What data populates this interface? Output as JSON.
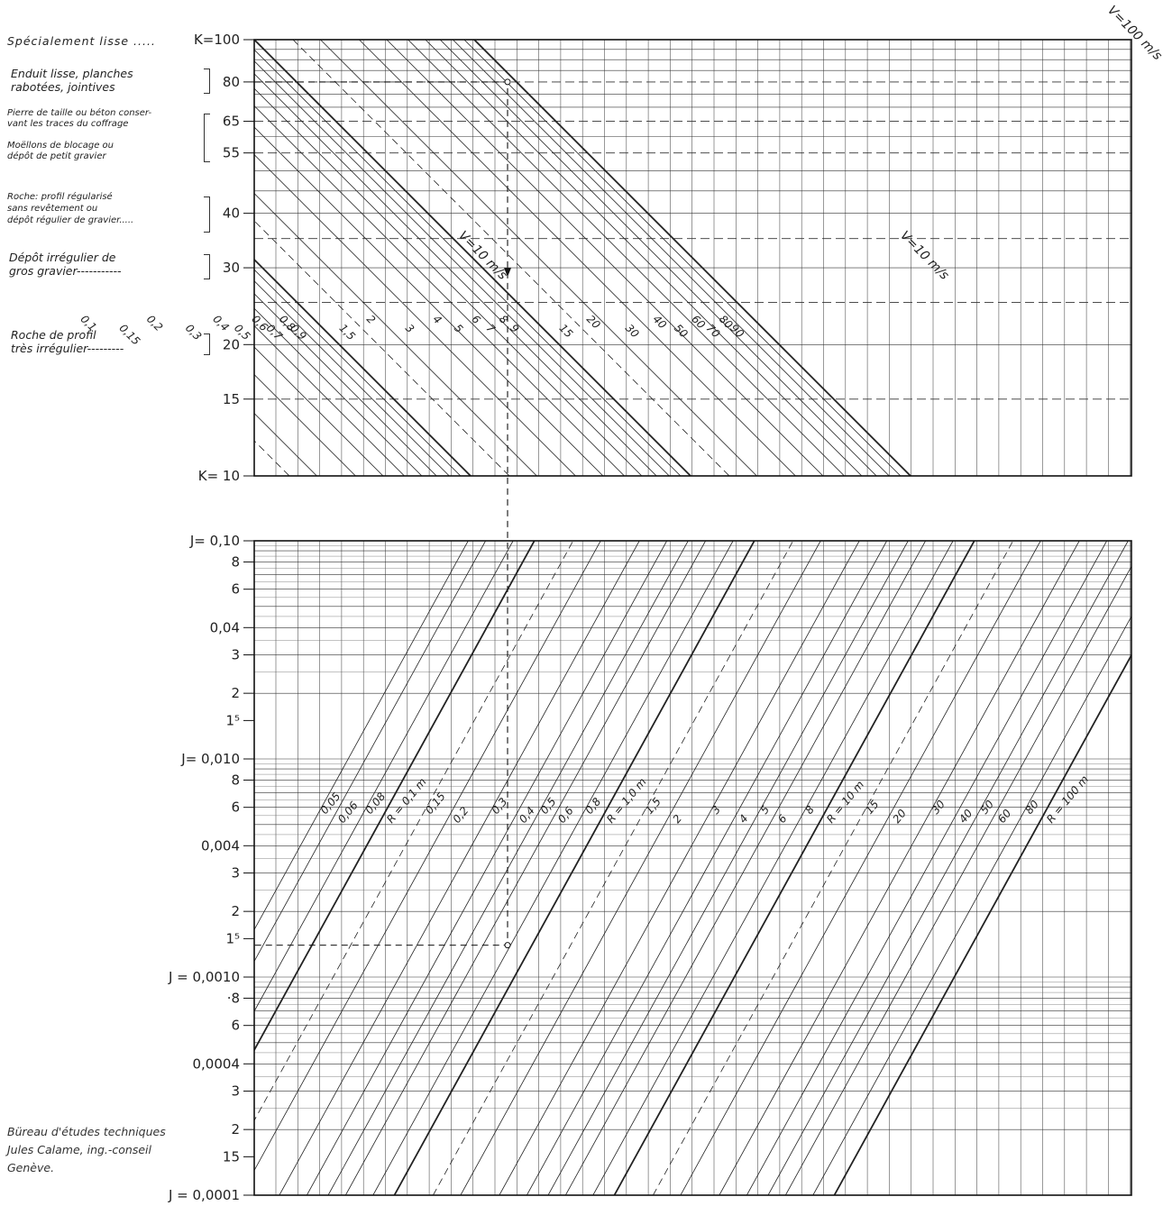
{
  "roughness_labels": [
    {
      "name": "specialement-lisse",
      "lines": [
        "Spécialement lisse .....",
        "K=100"
      ]
    },
    {
      "name": "enduit-lisse",
      "lines": [
        "Enduit lisse, planches",
        "rabotées, jointives"
      ],
      "k": "80"
    },
    {
      "name": "pierre-de-taille",
      "lines": [
        "Pierre de taille ou béton conser-",
        "vant les traces du coffrage"
      ],
      "k": "65"
    },
    {
      "name": "moellons",
      "lines": [
        "Moëllons de blocage ou",
        "dépôt de petit gravier"
      ],
      "k": "55"
    },
    {
      "name": "roche-regularise",
      "lines": [
        "Roche: profil régularisé",
        "sans revêtement ou",
        "dépôt régulier de gravier....."
      ],
      "k": "40"
    },
    {
      "name": "depot-irregulier",
      "lines": [
        "Dépôt irrégulier de",
        "gros gravier-----------"
      ],
      "k": "30"
    },
    {
      "name": "roche-irreguliere",
      "lines": [
        "Roche de profil",
        "très irrégulier---------"
      ],
      "k": "20"
    }
  ],
  "credit": [
    "Büreau d'études techniques",
    "Jules Calame, ing.-conseil",
    "Genève."
  ],
  "chart_data": [
    {
      "type": "line",
      "panel": "top",
      "y_scale": "log",
      "ylim": [
        10,
        100
      ],
      "y_tick_labels": [
        {
          "k": 100,
          "text": "K=100"
        },
        {
          "k": 80,
          "text": "80"
        },
        {
          "k": 65,
          "text": "65"
        },
        {
          "k": 55,
          "text": "55"
        },
        {
          "k": 40,
          "text": "40"
        },
        {
          "k": 30,
          "text": "30"
        },
        {
          "k": 20,
          "text": "20"
        },
        {
          "k": 15,
          "text": "15"
        },
        {
          "k": 10,
          "text": "K= 10"
        }
      ],
      "dashed_k": [
        80,
        65,
        55,
        35,
        25,
        15
      ],
      "extra_k": [
        90,
        85,
        75,
        70,
        60,
        50,
        45
      ],
      "velocity_series_label": "V=10 m/s",
      "velocity_series_label_right": "V=10 m/s",
      "velocity_top_label": "V=100 m/s",
      "velocity_lines": [
        {
          "v": 0.1,
          "label": "0,1"
        },
        {
          "v": 0.15,
          "label": "0,15"
        },
        {
          "v": 0.2,
          "label": "0,2"
        },
        {
          "v": 0.3,
          "label": "0,3"
        },
        {
          "v": 0.4,
          "label": "0,4"
        },
        {
          "v": 0.5,
          "label": "0,5"
        },
        {
          "v": 0.6,
          "label": "0,6"
        },
        {
          "v": 0.7,
          "label": "0,7"
        },
        {
          "v": 0.8,
          "label": "0,8"
        },
        {
          "v": 0.9,
          "label": "0,9"
        },
        {
          "v": 1.0,
          "label": ""
        },
        {
          "v": 1.5,
          "label": "1,5"
        },
        {
          "v": 2,
          "label": "2"
        },
        {
          "v": 3,
          "label": "3"
        },
        {
          "v": 4,
          "label": "4"
        },
        {
          "v": 5,
          "label": "5"
        },
        {
          "v": 6,
          "label": "6"
        },
        {
          "v": 7,
          "label": "7"
        },
        {
          "v": 8,
          "label": "8"
        },
        {
          "v": 9,
          "label": "9"
        },
        {
          "v": 10,
          "label": ""
        },
        {
          "v": 15,
          "label": "15"
        },
        {
          "v": 20,
          "label": "20"
        },
        {
          "v": 30,
          "label": "30"
        },
        {
          "v": 40,
          "label": "40"
        },
        {
          "v": 50,
          "label": "50"
        },
        {
          "v": 60,
          "label": "60"
        },
        {
          "v": 70,
          "label": "70"
        },
        {
          "v": 80,
          "label": "80"
        },
        {
          "v": 90,
          "label": "90"
        },
        {
          "v": 100,
          "label": ""
        }
      ]
    },
    {
      "type": "line",
      "panel": "bottom",
      "y_scale": "log",
      "ylim": [
        0.0001,
        0.1
      ],
      "y_tick_labels": [
        {
          "j": 0.1,
          "text": "J= 0,10"
        },
        {
          "j": 0.08,
          "text": "8"
        },
        {
          "j": 0.06,
          "text": "6"
        },
        {
          "j": 0.04,
          "text": "0,04"
        },
        {
          "j": 0.03,
          "text": "3"
        },
        {
          "j": 0.02,
          "text": "2"
        },
        {
          "j": 0.015,
          "text": "1⁵"
        },
        {
          "j": 0.01,
          "text": "J= 0,010"
        },
        {
          "j": 0.008,
          "text": "8"
        },
        {
          "j": 0.006,
          "text": "6"
        },
        {
          "j": 0.004,
          "text": "0,004"
        },
        {
          "j": 0.003,
          "text": "3"
        },
        {
          "j": 0.002,
          "text": "2"
        },
        {
          "j": 0.0015,
          "text": "1⁵"
        },
        {
          "j": 0.001,
          "text": "J = 0,0010"
        },
        {
          "j": 0.0008,
          "text": "·8"
        },
        {
          "j": 0.0006,
          "text": "6"
        },
        {
          "j": 0.0004,
          "text": "0,0004"
        },
        {
          "j": 0.0003,
          "text": "3"
        },
        {
          "j": 0.0002,
          "text": "2"
        },
        {
          "j": 0.00015,
          "text": "15"
        },
        {
          "j": 0.0001,
          "text": "J = 0,0001"
        }
      ],
      "dashed_j": [
        0.015,
        0.0015,
        0.00015
      ],
      "radius_lines": [
        {
          "r": 0.05,
          "label": "0,05"
        },
        {
          "r": 0.06,
          "label": "0,06"
        },
        {
          "r": 0.08,
          "label": "0,08"
        },
        {
          "r": 0.1,
          "label": "R = 0,1 m"
        },
        {
          "r": 0.15,
          "label": "0,15"
        },
        {
          "r": 0.2,
          "label": "0,2"
        },
        {
          "r": 0.3,
          "label": "0,3"
        },
        {
          "r": 0.4,
          "label": "0,4"
        },
        {
          "r": 0.5,
          "label": "0,5"
        },
        {
          "r": 0.6,
          "label": "0,6"
        },
        {
          "r": 0.8,
          "label": "0,8"
        },
        {
          "r": 1.0,
          "label": "R = 1,0 m"
        },
        {
          "r": 1.5,
          "label": "1,5"
        },
        {
          "r": 2,
          "label": "2"
        },
        {
          "r": 3,
          "label": "3"
        },
        {
          "r": 4,
          "label": "4"
        },
        {
          "r": 5,
          "label": "5"
        },
        {
          "r": 6,
          "label": "6"
        },
        {
          "r": 8,
          "label": "8"
        },
        {
          "r": 10,
          "label": "R = 10 m"
        },
        {
          "r": 15,
          "label": "15"
        },
        {
          "r": 20,
          "label": "20"
        },
        {
          "r": 30,
          "label": "30"
        },
        {
          "r": 40,
          "label": "40"
        },
        {
          "r": 50,
          "label": "50"
        },
        {
          "r": 60,
          "label": "60"
        },
        {
          "r": 80,
          "label": "80"
        },
        {
          "r": 100,
          "label": "R = 100 m"
        }
      ]
    }
  ],
  "example": {
    "k": 80,
    "v": 1.0,
    "r": 0.3,
    "j": 0.0014
  }
}
